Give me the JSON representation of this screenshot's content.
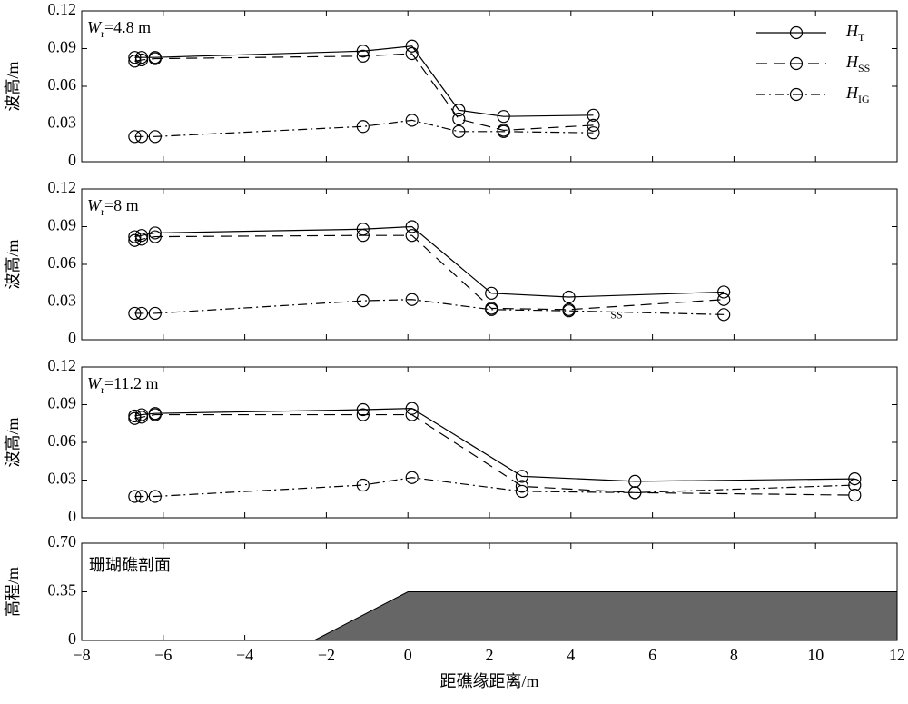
{
  "chart_data": [
    {
      "type": "line",
      "ylabel": "波高/m",
      "label": {
        "symbol": "W",
        "subscript": "r",
        "text": "=4.8 m"
      },
      "x": [
        -6.7,
        -6.53,
        -6.2,
        -1.1,
        0.1,
        1.25,
        2.35,
        4.55
      ],
      "series": [
        {
          "name": "H",
          "subscript": "T",
          "color": "#000000",
          "linestyle": "solid",
          "values": [
            0.083,
            0.083,
            0.083,
            0.088,
            0.092,
            0.041,
            0.036,
            0.037
          ]
        },
        {
          "name": "H",
          "subscript": "SS",
          "color": "#000000",
          "linestyle": "dashed",
          "values": [
            0.08,
            0.081,
            0.082,
            0.084,
            0.086,
            0.034,
            0.025,
            0.029
          ]
        },
        {
          "name": "H",
          "subscript": "IG",
          "color": "#000000",
          "linestyle": "dashdot",
          "values": [
            0.02,
            0.02,
            0.02,
            0.028,
            0.033,
            0.024,
            0.024,
            0.023
          ]
        }
      ],
      "xlim": [
        -8,
        12
      ],
      "ylim": [
        0,
        0.12
      ],
      "yticks": [
        0,
        0.03,
        0.06,
        0.09,
        0.12
      ],
      "legend": "upper right"
    },
    {
      "type": "line",
      "ylabel": "波高/m",
      "label": {
        "symbol": "W",
        "subscript": "r",
        "text": "=8 m"
      },
      "x": [
        -6.7,
        -6.53,
        -6.2,
        -1.1,
        0.1,
        2.05,
        3.95,
        7.75
      ],
      "series": [
        {
          "color": "#000000",
          "linestyle": "solid",
          "values": [
            0.082,
            0.083,
            0.085,
            0.088,
            0.09,
            0.037,
            0.034,
            0.038
          ]
        },
        {
          "color": "#000000",
          "linestyle": "dashed",
          "values": [
            0.079,
            0.08,
            0.082,
            0.083,
            0.083,
            0.025,
            0.024,
            0.032
          ]
        },
        {
          "color": "#000000",
          "linestyle": "dashdot",
          "values": [
            0.021,
            0.021,
            0.021,
            0.031,
            0.032,
            0.024,
            0.023,
            0.02
          ]
        }
      ],
      "annotations": [
        {
          "text": "SS",
          "x": 4.97,
          "y": 0.019
        }
      ],
      "xlim": [
        -8,
        12
      ],
      "ylim": [
        0,
        0.12
      ],
      "yticks": [
        0,
        0.03,
        0.06,
        0.09,
        0.12
      ]
    },
    {
      "type": "line",
      "ylabel": "波高/m",
      "label": {
        "symbol": "W",
        "subscript": "r",
        "text": "=11.2 m"
      },
      "x": [
        -6.7,
        -6.53,
        -6.2,
        -1.1,
        0.1,
        2.8,
        5.57,
        10.96
      ],
      "series": [
        {
          "color": "#000000",
          "linestyle": "solid",
          "values": [
            0.081,
            0.082,
            0.083,
            0.086,
            0.087,
            0.033,
            0.029,
            0.031
          ]
        },
        {
          "color": "#000000",
          "linestyle": "dashed",
          "values": [
            0.079,
            0.08,
            0.082,
            0.082,
            0.082,
            0.025,
            0.02,
            0.018
          ]
        },
        {
          "color": "#000000",
          "linestyle": "dashdot",
          "values": [
            0.017,
            0.017,
            0.017,
            0.026,
            0.032,
            0.021,
            0.02,
            0.026
          ]
        }
      ],
      "xlim": [
        -8,
        12
      ],
      "ylim": [
        0,
        0.12
      ],
      "yticks": [
        0,
        0.03,
        0.06,
        0.09,
        0.12
      ]
    },
    {
      "type": "area",
      "title": "珊瑚礁剖面",
      "ylabel": "高程/m",
      "xlabel": "距礁缘距离/m",
      "x": [
        -2.3,
        0,
        12
      ],
      "values": [
        0,
        0.35,
        0.35
      ],
      "color": "#666666",
      "xlim": [
        -8,
        12
      ],
      "ylim": [
        0,
        0.7
      ],
      "xticks": [
        {
          "value": -8,
          "label": "−8"
        },
        {
          "value": -6,
          "label": "−6"
        },
        {
          "value": -4,
          "label": "−4"
        },
        {
          "value": -2,
          "label": "−2"
        },
        0,
        2,
        4,
        6,
        8,
        10,
        12
      ],
      "yticks": [
        0,
        0.35,
        {
          "value": 0.7,
          "label": "0.70"
        }
      ]
    }
  ]
}
